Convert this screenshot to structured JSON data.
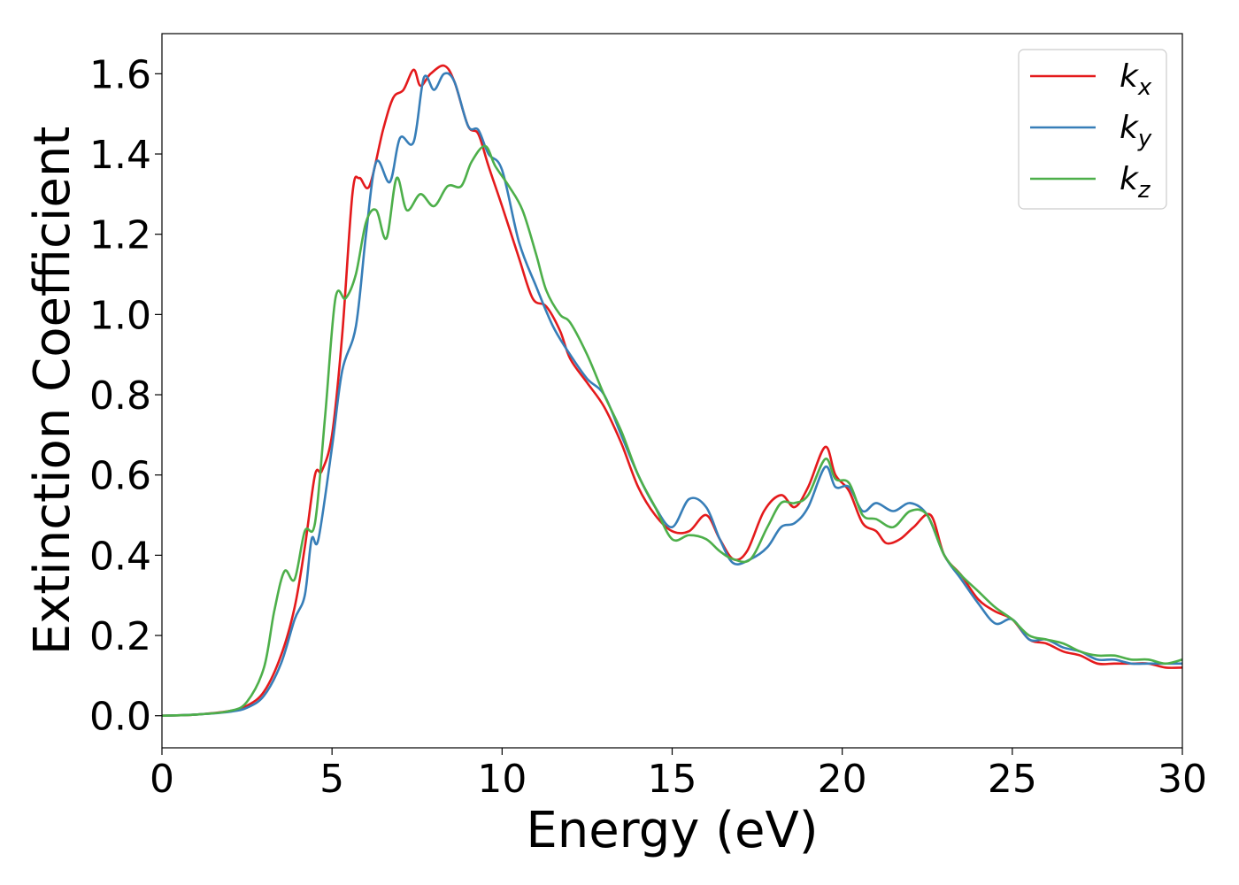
{
  "chart_data": {
    "type": "line",
    "xlabel": "Energy (eV)",
    "ylabel": "Extinction Coefficient",
    "xlim": [
      0,
      30
    ],
    "ylim": [
      -0.08,
      1.7
    ],
    "x_ticks": [
      0,
      5,
      10,
      15,
      20,
      25,
      30
    ],
    "x_tick_labels": [
      "0",
      "5",
      "10",
      "15",
      "20",
      "25",
      "30"
    ],
    "y_ticks": [
      0.0,
      0.2,
      0.4,
      0.6,
      0.8,
      1.0,
      1.2,
      1.4,
      1.6
    ],
    "y_tick_labels": [
      "0.0",
      "0.2",
      "0.4",
      "0.6",
      "0.8",
      "1.0",
      "1.2",
      "1.4",
      "1.6"
    ],
    "grid": false,
    "legend_position": "top-right",
    "series": [
      {
        "name": "k_x",
        "label_main": "k",
        "label_sub": "x",
        "color": "#e41a1c",
        "points": [
          [
            0,
            0
          ],
          [
            1,
            0.003
          ],
          [
            2,
            0.012
          ],
          [
            2.5,
            0.025
          ],
          [
            3,
            0.06
          ],
          [
            3.5,
            0.15
          ],
          [
            3.9,
            0.27
          ],
          [
            4.2,
            0.42
          ],
          [
            4.5,
            0.6
          ],
          [
            4.7,
            0.61
          ],
          [
            5,
            0.7
          ],
          [
            5.3,
            0.95
          ],
          [
            5.6,
            1.3
          ],
          [
            5.8,
            1.34
          ],
          [
            6.1,
            1.32
          ],
          [
            6.5,
            1.46
          ],
          [
            6.8,
            1.54
          ],
          [
            7.1,
            1.56
          ],
          [
            7.4,
            1.61
          ],
          [
            7.6,
            1.57
          ],
          [
            7.9,
            1.6
          ],
          [
            8.3,
            1.62
          ],
          [
            8.6,
            1.58
          ],
          [
            9,
            1.47
          ],
          [
            9.3,
            1.45
          ],
          [
            9.6,
            1.37
          ],
          [
            10,
            1.27
          ],
          [
            10.5,
            1.14
          ],
          [
            10.9,
            1.04
          ],
          [
            11.3,
            1.02
          ],
          [
            11.7,
            0.96
          ],
          [
            12,
            0.89
          ],
          [
            12.5,
            0.83
          ],
          [
            13,
            0.77
          ],
          [
            13.5,
            0.68
          ],
          [
            14,
            0.57
          ],
          [
            14.5,
            0.5
          ],
          [
            15,
            0.46
          ],
          [
            15.5,
            0.46
          ],
          [
            16,
            0.5
          ],
          [
            16.4,
            0.44
          ],
          [
            16.8,
            0.39
          ],
          [
            17.2,
            0.41
          ],
          [
            17.7,
            0.51
          ],
          [
            18.2,
            0.55
          ],
          [
            18.6,
            0.52
          ],
          [
            19,
            0.57
          ],
          [
            19.5,
            0.67
          ],
          [
            19.8,
            0.6
          ],
          [
            20.2,
            0.56
          ],
          [
            20.6,
            0.48
          ],
          [
            21,
            0.46
          ],
          [
            21.3,
            0.43
          ],
          [
            21.7,
            0.44
          ],
          [
            22.1,
            0.47
          ],
          [
            22.6,
            0.5
          ],
          [
            23,
            0.4
          ],
          [
            23.5,
            0.35
          ],
          [
            24,
            0.29
          ],
          [
            24.5,
            0.26
          ],
          [
            25,
            0.24
          ],
          [
            25.5,
            0.19
          ],
          [
            26,
            0.18
          ],
          [
            26.5,
            0.16
          ],
          [
            27,
            0.15
          ],
          [
            27.5,
            0.13
          ],
          [
            28,
            0.13
          ],
          [
            28.5,
            0.13
          ],
          [
            29,
            0.13
          ],
          [
            29.5,
            0.12
          ],
          [
            30,
            0.12
          ]
        ]
      },
      {
        "name": "k_y",
        "label_main": "k",
        "label_sub": "y",
        "color": "#377eb8",
        "points": [
          [
            0,
            0
          ],
          [
            1,
            0.003
          ],
          [
            2,
            0.01
          ],
          [
            2.5,
            0.02
          ],
          [
            3,
            0.05
          ],
          [
            3.5,
            0.13
          ],
          [
            3.9,
            0.24
          ],
          [
            4.2,
            0.3
          ],
          [
            4.4,
            0.44
          ],
          [
            4.6,
            0.44
          ],
          [
            5,
            0.67
          ],
          [
            5.3,
            0.86
          ],
          [
            5.7,
            0.97
          ],
          [
            6,
            1.2
          ],
          [
            6.3,
            1.38
          ],
          [
            6.7,
            1.33
          ],
          [
            7,
            1.44
          ],
          [
            7.4,
            1.43
          ],
          [
            7.7,
            1.59
          ],
          [
            8,
            1.56
          ],
          [
            8.3,
            1.6
          ],
          [
            8.6,
            1.58
          ],
          [
            9,
            1.47
          ],
          [
            9.3,
            1.46
          ],
          [
            9.6,
            1.4
          ],
          [
            10,
            1.36
          ],
          [
            10.5,
            1.18
          ],
          [
            11,
            1.07
          ],
          [
            11.5,
            0.97
          ],
          [
            12,
            0.9
          ],
          [
            12.5,
            0.84
          ],
          [
            13,
            0.8
          ],
          [
            13.5,
            0.7
          ],
          [
            14,
            0.6
          ],
          [
            14.5,
            0.52
          ],
          [
            15,
            0.47
          ],
          [
            15.5,
            0.54
          ],
          [
            16,
            0.52
          ],
          [
            16.4,
            0.44
          ],
          [
            16.8,
            0.38
          ],
          [
            17.3,
            0.39
          ],
          [
            17.8,
            0.42
          ],
          [
            18.2,
            0.47
          ],
          [
            18.6,
            0.48
          ],
          [
            19,
            0.52
          ],
          [
            19.5,
            0.62
          ],
          [
            19.8,
            0.57
          ],
          [
            20.2,
            0.57
          ],
          [
            20.6,
            0.51
          ],
          [
            21,
            0.53
          ],
          [
            21.5,
            0.51
          ],
          [
            22,
            0.53
          ],
          [
            22.5,
            0.5
          ],
          [
            23,
            0.4
          ],
          [
            23.5,
            0.34
          ],
          [
            24,
            0.28
          ],
          [
            24.5,
            0.23
          ],
          [
            25,
            0.24
          ],
          [
            25.5,
            0.19
          ],
          [
            26,
            0.19
          ],
          [
            26.5,
            0.17
          ],
          [
            27,
            0.16
          ],
          [
            27.5,
            0.14
          ],
          [
            28,
            0.14
          ],
          [
            28.5,
            0.13
          ],
          [
            29,
            0.13
          ],
          [
            29.5,
            0.13
          ],
          [
            30,
            0.13
          ]
        ]
      },
      {
        "name": "k_z",
        "label_main": "k",
        "label_sub": "z",
        "color": "#4daf4a",
        "points": [
          [
            0,
            0
          ],
          [
            1,
            0.003
          ],
          [
            2,
            0.012
          ],
          [
            2.5,
            0.035
          ],
          [
            3,
            0.12
          ],
          [
            3.3,
            0.26
          ],
          [
            3.6,
            0.36
          ],
          [
            3.9,
            0.34
          ],
          [
            4.2,
            0.46
          ],
          [
            4.5,
            0.48
          ],
          [
            4.8,
            0.75
          ],
          [
            5.1,
            1.04
          ],
          [
            5.4,
            1.04
          ],
          [
            5.7,
            1.1
          ],
          [
            6,
            1.23
          ],
          [
            6.3,
            1.26
          ],
          [
            6.6,
            1.19
          ],
          [
            6.9,
            1.34
          ],
          [
            7.2,
            1.26
          ],
          [
            7.6,
            1.3
          ],
          [
            8,
            1.27
          ],
          [
            8.4,
            1.32
          ],
          [
            8.8,
            1.32
          ],
          [
            9.1,
            1.38
          ],
          [
            9.5,
            1.42
          ],
          [
            9.8,
            1.37
          ],
          [
            10.2,
            1.32
          ],
          [
            10.6,
            1.26
          ],
          [
            11,
            1.15
          ],
          [
            11.3,
            1.06
          ],
          [
            11.7,
            1.0
          ],
          [
            12,
            0.98
          ],
          [
            12.5,
            0.9
          ],
          [
            13,
            0.8
          ],
          [
            13.5,
            0.71
          ],
          [
            14,
            0.6
          ],
          [
            14.5,
            0.52
          ],
          [
            15,
            0.44
          ],
          [
            15.5,
            0.45
          ],
          [
            16,
            0.44
          ],
          [
            16.4,
            0.41
          ],
          [
            16.8,
            0.39
          ],
          [
            17.3,
            0.39
          ],
          [
            17.8,
            0.47
          ],
          [
            18.2,
            0.53
          ],
          [
            18.6,
            0.53
          ],
          [
            19,
            0.55
          ],
          [
            19.5,
            0.64
          ],
          [
            19.8,
            0.59
          ],
          [
            20.2,
            0.58
          ],
          [
            20.6,
            0.5
          ],
          [
            21,
            0.49
          ],
          [
            21.5,
            0.47
          ],
          [
            22,
            0.51
          ],
          [
            22.5,
            0.5
          ],
          [
            23,
            0.4
          ],
          [
            23.5,
            0.35
          ],
          [
            24,
            0.31
          ],
          [
            24.5,
            0.27
          ],
          [
            25,
            0.24
          ],
          [
            25.5,
            0.2
          ],
          [
            26,
            0.19
          ],
          [
            26.5,
            0.18
          ],
          [
            27,
            0.16
          ],
          [
            27.5,
            0.15
          ],
          [
            28,
            0.15
          ],
          [
            28.5,
            0.14
          ],
          [
            29,
            0.14
          ],
          [
            29.5,
            0.13
          ],
          [
            30,
            0.14
          ]
        ]
      }
    ]
  }
}
